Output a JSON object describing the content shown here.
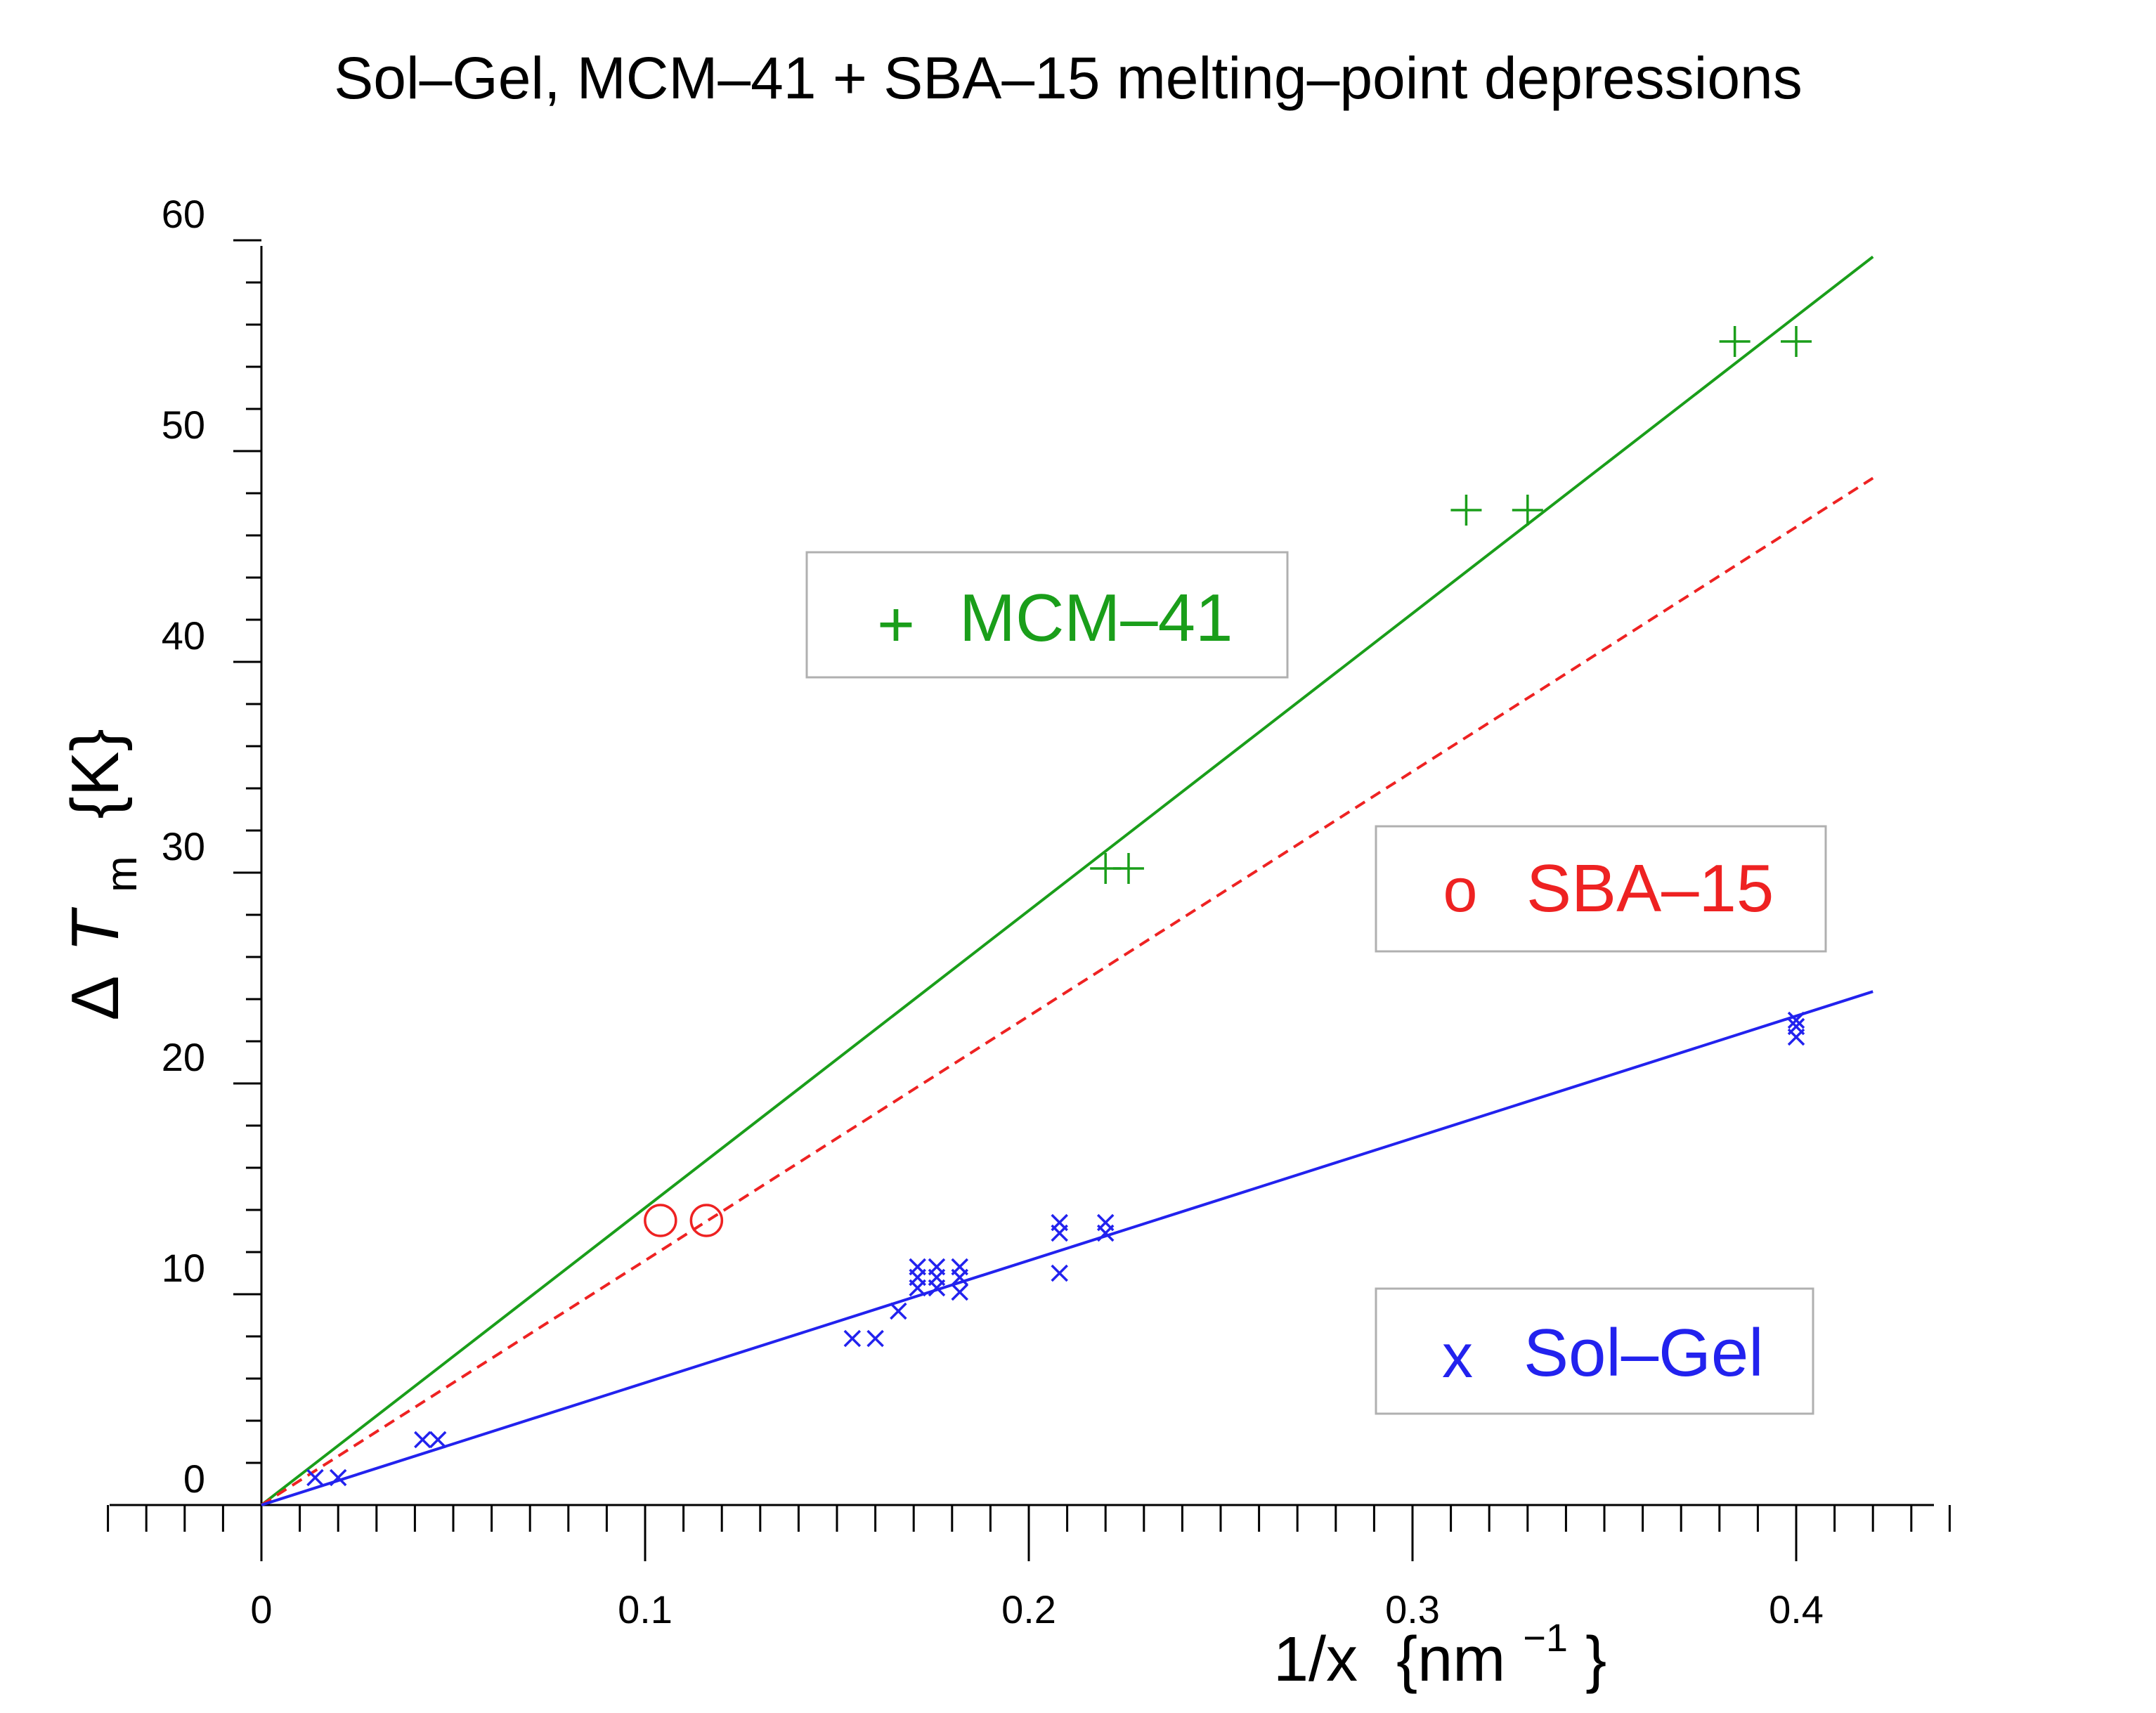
{
  "chart_data": {
    "type": "scatter",
    "title": "Sol–Gel,  MCM–41  +  SBA–15  melting–point  depressions",
    "xlabel": {
      "prefix": "1/x",
      "unit_open": "{nm",
      "unit_sup": "−1",
      "unit_close": "}"
    },
    "ylabel": {
      "delta": "Δ",
      "symbol": "T",
      "sub": "m",
      "unit": "{K}"
    },
    "xlim": [
      -0.04,
      0.44
    ],
    "ylim": [
      0,
      60
    ],
    "x_ticks": [
      0,
      0.1,
      0.2,
      0.3,
      0.4
    ],
    "x_tick_labels": [
      "0",
      "0.1",
      "0.2",
      "0.3",
      "0.4"
    ],
    "y_ticks": [
      0,
      10,
      20,
      30,
      40,
      50,
      60
    ],
    "y_tick_labels": [
      "0",
      "10",
      "20",
      "30",
      "40",
      "50",
      "60"
    ],
    "series": [
      {
        "name": "MCM–41",
        "legend_symbol": "+",
        "marker": "plus",
        "color": "#1a9e1a",
        "fit": {
          "slope": 141,
          "x_range": [
            0,
            0.42
          ],
          "dashed": false
        },
        "points": [
          [
            0.22,
            30.2
          ],
          [
            0.226,
            30.2
          ],
          [
            0.314,
            47.2
          ],
          [
            0.33,
            47.2
          ],
          [
            0.384,
            55.2
          ],
          [
            0.4,
            55.2
          ]
        ]
      },
      {
        "name": "SBA–15",
        "legend_symbol": "o",
        "marker": "circle",
        "color": "#ee2222",
        "fit": {
          "slope": 116,
          "x_range": [
            0,
            0.42
          ],
          "dashed": true
        },
        "points": [
          [
            0.104,
            13.5
          ],
          [
            0.116,
            13.5
          ]
        ]
      },
      {
        "name": "Sol–Gel",
        "legend_symbol": "x",
        "marker": "cross",
        "color": "#2222ee",
        "fit": {
          "slope": 58,
          "x_range": [
            0,
            0.42
          ],
          "dashed": false
        },
        "points": [
          [
            0.014,
            1.3
          ],
          [
            0.02,
            1.3
          ],
          [
            0.042,
            3.1
          ],
          [
            0.046,
            3.1
          ],
          [
            0.154,
            7.9
          ],
          [
            0.16,
            7.9
          ],
          [
            0.166,
            9.2
          ],
          [
            0.171,
            10.3
          ],
          [
            0.171,
            10.8
          ],
          [
            0.171,
            11.3
          ],
          [
            0.176,
            10.3
          ],
          [
            0.176,
            10.8
          ],
          [
            0.176,
            11.3
          ],
          [
            0.182,
            10.1
          ],
          [
            0.182,
            10.8
          ],
          [
            0.182,
            11.3
          ],
          [
            0.208,
            11.0
          ],
          [
            0.208,
            12.9
          ],
          [
            0.208,
            13.4
          ],
          [
            0.22,
            12.9
          ],
          [
            0.22,
            13.4
          ],
          [
            0.4,
            22.2
          ],
          [
            0.4,
            22.7
          ],
          [
            0.4,
            23.0
          ]
        ]
      }
    ]
  }
}
